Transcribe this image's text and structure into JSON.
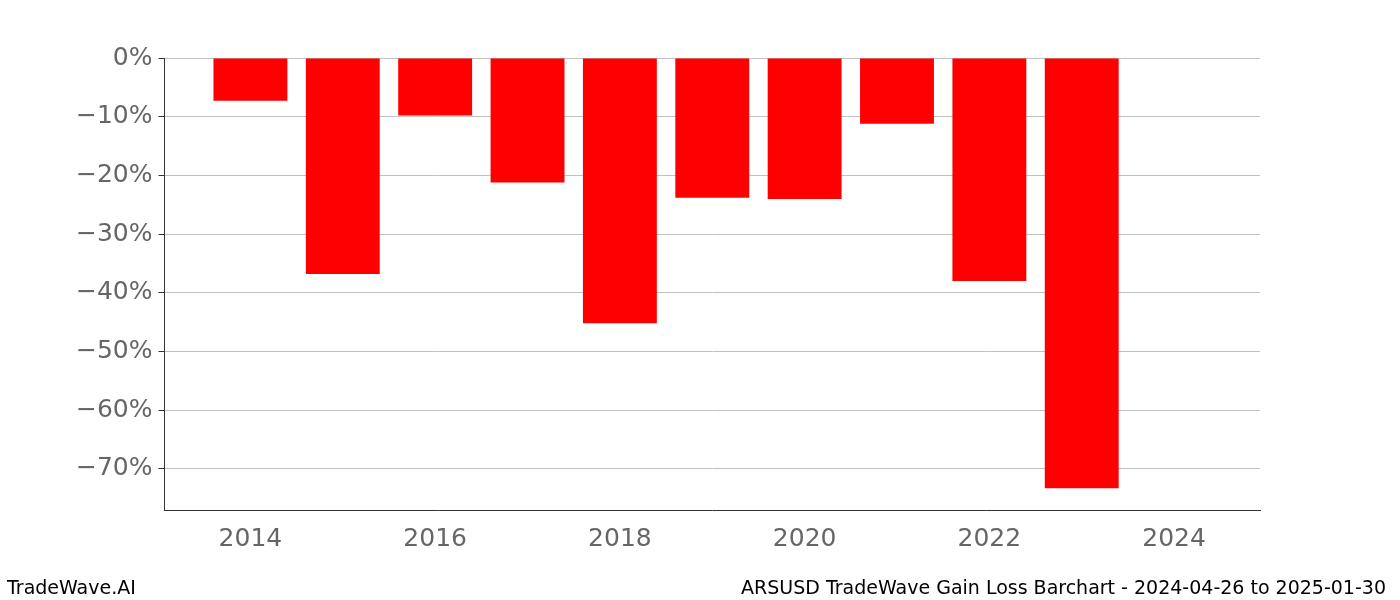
{
  "chart_data": {
    "type": "bar",
    "x": [
      2014,
      2015,
      2016,
      2017,
      2018,
      2019,
      2020,
      2021,
      2022,
      2023
    ],
    "values": [
      -7.3,
      -36.8,
      -9.8,
      -21.2,
      -45.2,
      -23.8,
      -24.0,
      -11.2,
      -38.0,
      -73.3
    ],
    "color": "#ff0000",
    "xlim": [
      2013.07,
      2024.93
    ],
    "xticks": [
      2014,
      2016,
      2018,
      2020,
      2022,
      2024
    ],
    "ylim": [
      -77,
      0
    ],
    "yticks": [
      {
        "value": -70,
        "label": "−70%"
      },
      {
        "value": -60,
        "label": "−60%"
      },
      {
        "value": -50,
        "label": "−50%"
      },
      {
        "value": -40,
        "label": "−40%"
      },
      {
        "value": -30,
        "label": "−30%"
      },
      {
        "value": -20,
        "label": "−20%"
      },
      {
        "value": -10,
        "label": "−10%"
      },
      {
        "value": 0,
        "label": "0%"
      }
    ],
    "grid": true,
    "annotations": [
      "TradeWave.AI",
      "ARSUSD TradeWave Gain Loss Barchart - 2024-04-26 to 2025-01-30"
    ]
  }
}
